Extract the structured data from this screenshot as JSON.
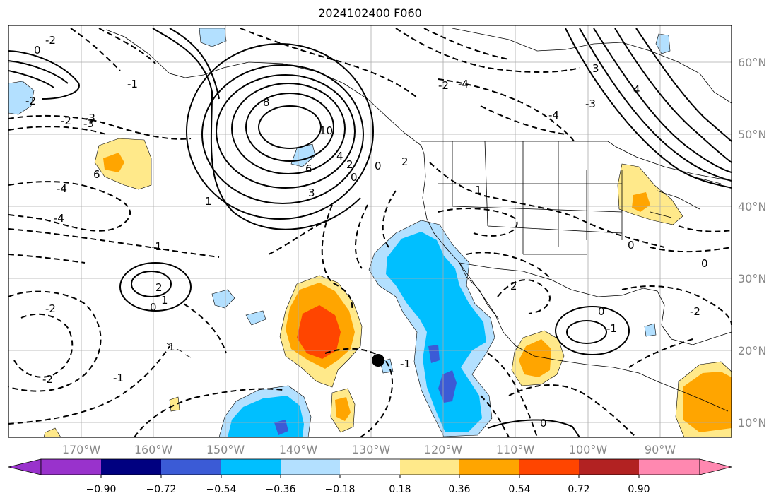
{
  "title": "2024102400 F060",
  "map": {
    "lon_ticks": [
      "170°W",
      "160°W",
      "150°W",
      "140°W",
      "130°W",
      "120°W",
      "110°W",
      "100°W",
      "90°W"
    ],
    "lat_ticks": [
      "60°N",
      "50°N",
      "40°N",
      "30°N",
      "20°N",
      "10°N"
    ],
    "contour_labels": [
      "8",
      "10",
      "6",
      "4",
      "3",
      "2",
      "0",
      "0",
      "-2",
      "-3",
      "-4",
      "-1",
      "1",
      "2",
      "0",
      "1",
      "-2",
      "-2",
      "-1",
      "6",
      "-4",
      "-2",
      "-1",
      "-3",
      "-4",
      "-2",
      "0",
      "1",
      "-2",
      "0",
      "2",
      "-2",
      "0",
      "-1",
      "-1",
      "0",
      "3",
      "4",
      "2",
      "1",
      "0",
      "-4",
      "-3"
    ],
    "marker": "storm-center-dot",
    "colors": {
      "fill_neg_018": "#b3e0ff",
      "fill_neg_036": "#00bfff",
      "fill_neg_054": "#3b5bd6",
      "fill_pos_018": "#ffe98a",
      "fill_pos_036": "#ffa500",
      "fill_pos_054": "#ff4500"
    }
  },
  "colorbar": {
    "ticks": [
      "−0.90",
      "−0.72",
      "−0.54",
      "−0.36",
      "−0.18",
      "0.18",
      "0.36",
      "0.54",
      "0.72",
      "0.90"
    ],
    "colors": [
      "#9932cc",
      "#000080",
      "#3b5bd6",
      "#00bfff",
      "#b3e0ff",
      "#ffffff",
      "#ffe98a",
      "#ffa500",
      "#ff4500",
      "#b22222",
      "#ff88b0"
    ]
  }
}
